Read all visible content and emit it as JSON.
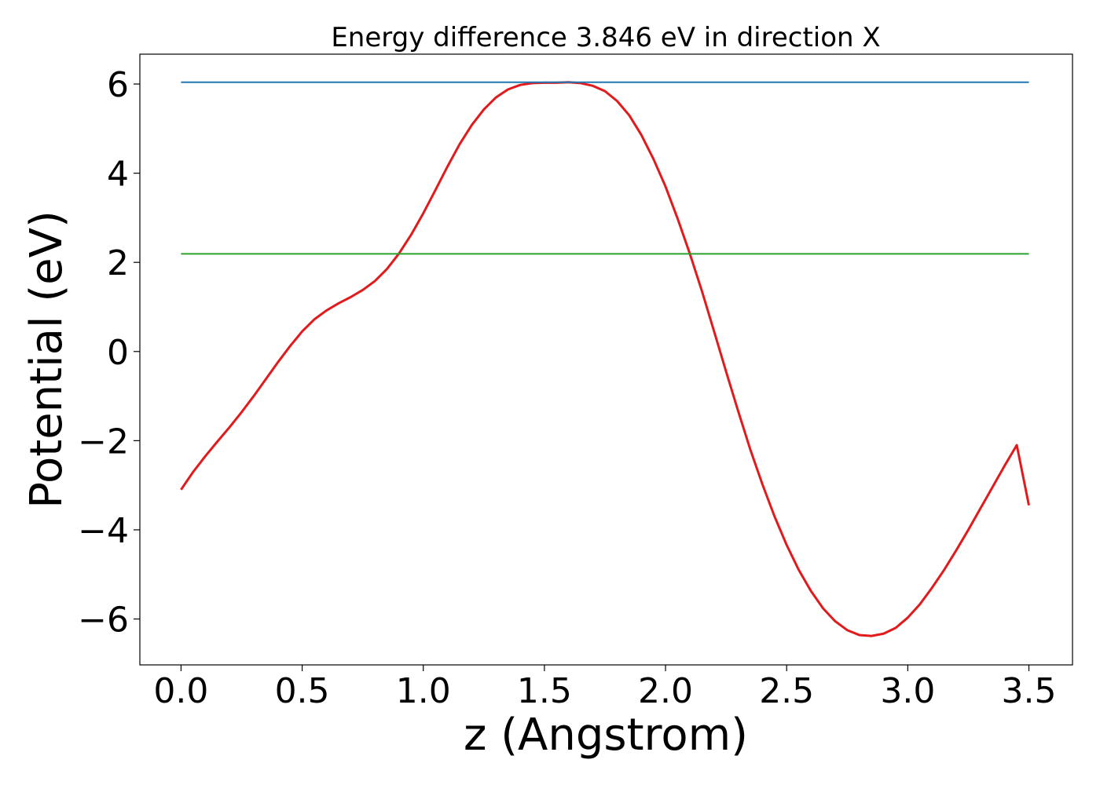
{
  "chart_data": {
    "type": "line",
    "title": "Energy difference 3.846 eV in direction X",
    "xlabel": "z (Angstrom)",
    "ylabel": "Potential (eV)",
    "xlim": [
      -0.17,
      3.68
    ],
    "ylim": [
      -7.03,
      6.67
    ],
    "xticks": [
      0.0,
      0.5,
      1.0,
      1.5,
      2.0,
      2.5,
      3.0,
      3.5
    ],
    "xtick_labels": [
      "0.0",
      "0.5",
      "1.0",
      "1.5",
      "2.0",
      "2.5",
      "3.0",
      "3.5"
    ],
    "yticks": [
      -6,
      -4,
      -2,
      0,
      2,
      4,
      6
    ],
    "ytick_labels": [
      "−6",
      "−4",
      "−2",
      "0",
      "2",
      "4",
      "6"
    ],
    "grid": false,
    "legend": "none",
    "series": [
      {
        "color": "#e31a1c",
        "x": [
          0.0,
          0.05,
          0.1,
          0.15,
          0.2,
          0.25,
          0.3,
          0.35,
          0.4,
          0.45,
          0.5,
          0.55,
          0.6,
          0.65,
          0.7,
          0.75,
          0.8,
          0.85,
          0.9,
          0.95,
          1.0,
          1.05,
          1.1,
          1.15,
          1.2,
          1.25,
          1.3,
          1.35,
          1.4,
          1.45,
          1.5,
          1.55,
          1.6,
          1.65,
          1.7,
          1.75,
          1.8,
          1.85,
          1.9,
          1.95,
          2.0,
          2.05,
          2.1,
          2.15,
          2.2,
          2.25,
          2.3,
          2.35,
          2.4,
          2.45,
          2.5,
          2.55,
          2.6,
          2.65,
          2.7,
          2.75,
          2.8,
          2.85,
          2.9,
          2.95,
          3.0,
          3.05,
          3.1,
          3.15,
          3.2,
          3.25,
          3.3,
          3.35,
          3.4,
          3.45,
          3.5
        ],
        "y": [
          -3.1,
          -2.7,
          -2.35,
          -2.02,
          -1.7,
          -1.36,
          -1.0,
          -0.62,
          -0.24,
          0.12,
          0.45,
          0.72,
          0.92,
          1.08,
          1.22,
          1.38,
          1.58,
          1.85,
          2.2,
          2.62,
          3.1,
          3.62,
          4.15,
          4.65,
          5.08,
          5.43,
          5.7,
          5.88,
          5.98,
          6.02,
          6.03,
          6.03,
          6.04,
          6.02,
          5.96,
          5.84,
          5.62,
          5.3,
          4.86,
          4.32,
          3.7,
          2.98,
          2.2,
          1.36,
          0.46,
          -0.45,
          -1.34,
          -2.2,
          -2.98,
          -3.7,
          -4.34,
          -4.9,
          -5.37,
          -5.76,
          -6.05,
          -6.25,
          -6.36,
          -6.38,
          -6.33,
          -6.2,
          -5.97,
          -5.67,
          -5.3,
          -4.9,
          -4.46,
          -4.0,
          -3.52,
          -3.04,
          -2.56,
          -2.1,
          -3.45
        ]
      },
      {
        "color": "#1f77b4",
        "x": [
          0.0,
          3.5
        ],
        "y": [
          6.04,
          6.04
        ]
      },
      {
        "color": "#2ca02c",
        "x": [
          0.0,
          3.5
        ],
        "y": [
          2.19,
          2.19
        ]
      }
    ]
  }
}
